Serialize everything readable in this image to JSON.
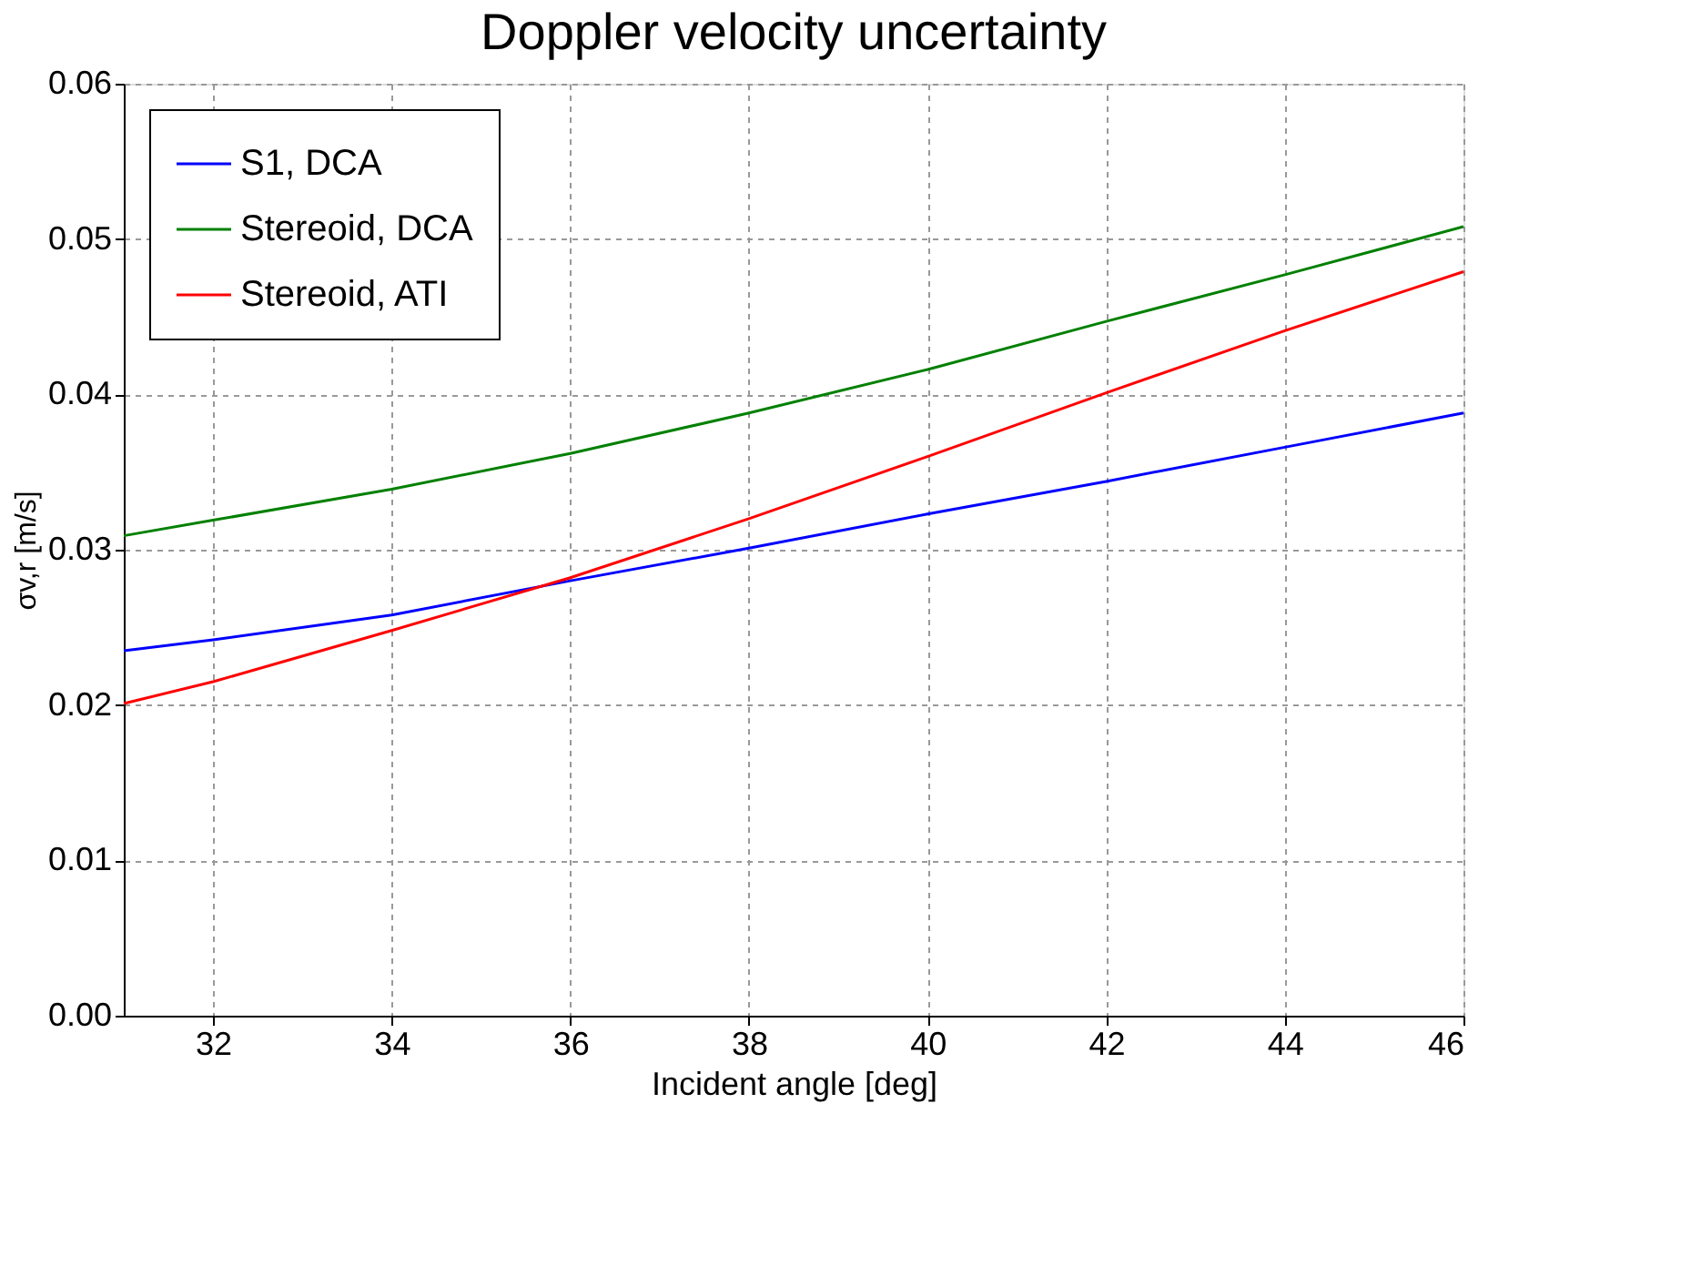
{
  "chart_data": {
    "type": "line",
    "title": "Doppler velocity uncertainty",
    "xlabel": "Incident angle [deg]",
    "ylabel": "σv,r [m/s]",
    "x": [
      31,
      32,
      34,
      36,
      38,
      40,
      42,
      44,
      46
    ],
    "series": [
      {
        "name": "S1, DCA",
        "color": "#0000ff",
        "values": [
          0.0235,
          0.0242,
          0.0258,
          0.028,
          0.0301,
          0.0323,
          0.0344,
          0.0366,
          0.0388
        ]
      },
      {
        "name": "Stereoid, DCA",
        "color": "#008000",
        "values": [
          0.0309,
          0.0319,
          0.0339,
          0.0362,
          0.0388,
          0.0416,
          0.0447,
          0.0477,
          0.0508
        ]
      },
      {
        "name": "Stereoid, ATI",
        "color": "#ff0000",
        "values": [
          0.0201,
          0.0215,
          0.0248,
          0.0282,
          0.032,
          0.036,
          0.0401,
          0.0441,
          0.0479
        ]
      }
    ],
    "xlim": [
      31,
      46
    ],
    "xticks": [
      32,
      34,
      36,
      38,
      40,
      42,
      44,
      46
    ],
    "ylim": [
      0,
      0.06
    ],
    "yticks": [
      {
        "value": 0,
        "label": "0.00"
      },
      0.01,
      0.02,
      0.03,
      0.04,
      0.05,
      0.06
    ],
    "grid": true,
    "legend": "top left",
    "line_style": "solid",
    "marker": "none"
  }
}
